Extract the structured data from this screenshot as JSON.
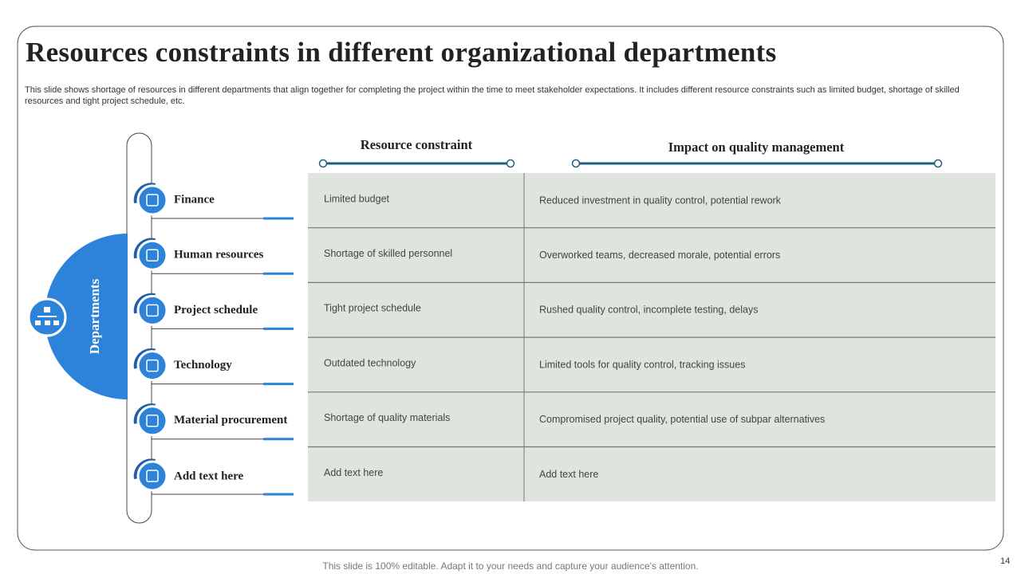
{
  "header": {
    "title": "Resources constraints in different organizational departments",
    "description": "This slide shows shortage of resources in different departments that align together for completing the project within the time to meet stakeholder expectations. It includes different resource constraints such as limited budget, shortage of skilled resources and tight project schedule, etc."
  },
  "side_label": "Departments",
  "departments": [
    "Finance",
    "Human resources",
    "Project schedule",
    "Technology",
    "Material procurement",
    "Add text here"
  ],
  "table": {
    "columns": [
      "Resource constraint",
      "Impact on quality management"
    ],
    "rows": [
      [
        "Limited budget",
        "Reduced investment in quality control, potential rework"
      ],
      [
        "Shortage of skilled personnel",
        "Overworked  teams, decreased morale, potential errors"
      ],
      [
        "Tight project schedule",
        "Rushed quality control, incomplete testing, delays"
      ],
      [
        "Outdated technology",
        "Limited tools for quality control, tracking issues"
      ],
      [
        "Shortage of quality materials",
        "Compromised  project quality, potential use of subpar alternatives"
      ],
      [
        "Add text here",
        "Add text here"
      ]
    ]
  },
  "footer": {
    "note": "This slide is 100% editable. Adapt it to your needs and capture your audience's attention.",
    "page": "14"
  }
}
